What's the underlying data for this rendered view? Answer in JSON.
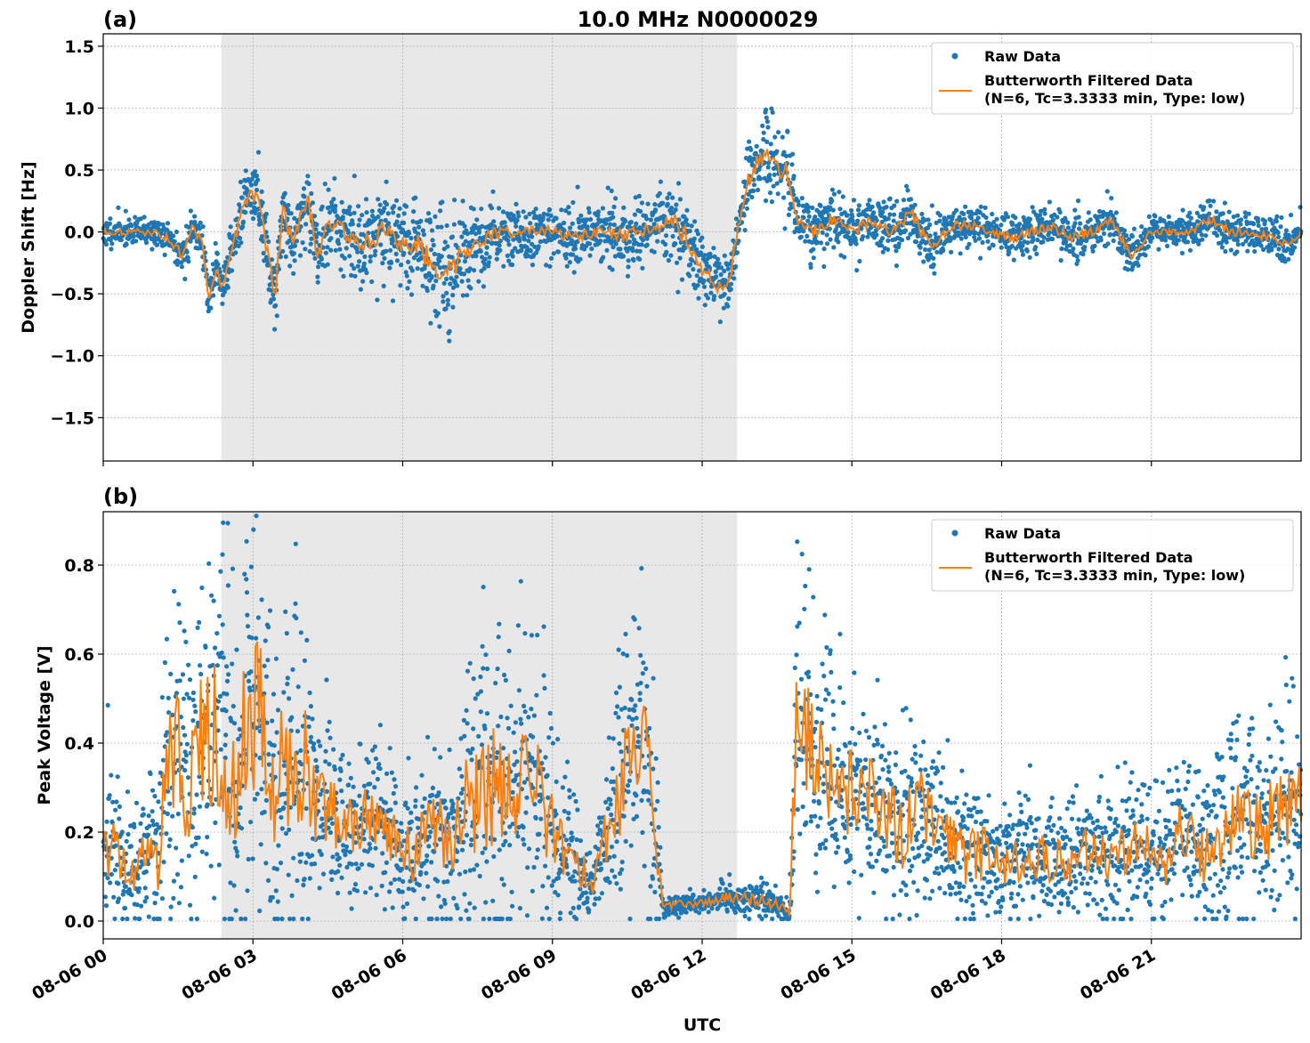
{
  "figure": {
    "title": "10.0 MHz N0000029",
    "xlabel": "UTC"
  },
  "colors": {
    "raw": "#1f77b4",
    "filtered": "#ff7f0e",
    "shade": "#e8e8e8",
    "grid": "#b0b0b0"
  },
  "chart_data": [
    {
      "type": "scatter",
      "panel_label": "(a)",
      "title": "10.0 MHz N0000029",
      "xlabel": "",
      "ylabel": "Doppler Shift [Hz]",
      "xlim": [
        "08-06 00:00",
        "08-07 00:00"
      ],
      "ylim": [
        -1.85,
        1.6
      ],
      "yticks": [
        -1.5,
        -1.0,
        -0.5,
        0.0,
        0.5,
        1.0,
        1.5
      ],
      "ytick_labels": [
        "−1.5",
        "−1.0",
        "−0.5",
        "0.0",
        "0.5",
        "1.0",
        "1.5"
      ],
      "shaded_interval": [
        "08-06 02:22",
        "08-06 12:42"
      ],
      "grid": true,
      "legend": {
        "position": "top-right",
        "entries": [
          {
            "label": "Raw Data",
            "marker": "point"
          },
          {
            "label": "Butterworth Filtered Data",
            "label2": "(N=6, Tc=3.3333 min, Type: low)",
            "marker": "line"
          }
        ]
      },
      "series": [
        {
          "name": "Raw Data",
          "x_hours": [
            0.0,
            0.5,
            1.0,
            1.3,
            1.6,
            1.8,
            2.0,
            2.1,
            2.25,
            2.4,
            2.55,
            2.7,
            2.9,
            3.1,
            3.3,
            3.45,
            3.6,
            3.8,
            4.1,
            4.3,
            4.5,
            4.8,
            5.2,
            5.6,
            6.0,
            6.3,
            6.6,
            6.9,
            7.2,
            7.6,
            8.0,
            8.5,
            9.0,
            9.5,
            10.0,
            10.5,
            11.0,
            11.4,
            11.7,
            12.0,
            12.3,
            12.55,
            12.7,
            12.9,
            13.1,
            13.3,
            13.5,
            13.7,
            13.9,
            14.2,
            14.6,
            15.0,
            15.4,
            15.8,
            16.2,
            16.6,
            17.0,
            17.4,
            17.8,
            18.2,
            18.6,
            19.0,
            19.4,
            19.8,
            20.2,
            20.6,
            21.0,
            21.4,
            21.8,
            22.2,
            22.6,
            23.0,
            23.4,
            23.8,
            24.0
          ],
          "y": [
            0.0,
            0.0,
            0.0,
            -0.05,
            -0.2,
            0.05,
            -0.1,
            -0.55,
            -0.3,
            -0.45,
            -0.15,
            0.05,
            0.3,
            0.28,
            -0.2,
            -0.5,
            0.2,
            -0.1,
            0.3,
            -0.2,
            0.1,
            0.0,
            -0.1,
            0.0,
            -0.1,
            -0.1,
            -0.25,
            -0.35,
            -0.15,
            -0.05,
            0.0,
            0.0,
            0.0,
            -0.05,
            0.0,
            -0.05,
            0.05,
            0.1,
            -0.05,
            -0.3,
            -0.45,
            -0.4,
            0.0,
            0.4,
            0.55,
            0.6,
            0.5,
            0.5,
            0.1,
            0.0,
            0.1,
            0.0,
            0.1,
            0.0,
            0.15,
            -0.15,
            0.05,
            0.05,
            0.0,
            -0.05,
            0.0,
            0.05,
            -0.05,
            0.0,
            0.1,
            -0.2,
            0.0,
            0.0,
            0.0,
            0.1,
            0.0,
            0.0,
            -0.05,
            -0.1,
            0.0
          ],
          "spread": [
            0.1,
            0.1,
            0.1,
            0.12,
            0.2,
            0.15,
            0.15,
            0.15,
            0.2,
            0.15,
            0.2,
            0.25,
            0.2,
            0.25,
            0.3,
            0.25,
            0.3,
            0.3,
            0.3,
            0.35,
            0.3,
            0.3,
            0.3,
            0.35,
            0.3,
            0.35,
            0.4,
            0.45,
            0.35,
            0.3,
            0.2,
            0.2,
            0.2,
            0.2,
            0.2,
            0.25,
            0.25,
            0.3,
            0.3,
            0.3,
            0.2,
            0.2,
            0.2,
            0.25,
            0.3,
            0.35,
            0.3,
            0.3,
            0.2,
            0.2,
            0.2,
            0.2,
            0.2,
            0.2,
            0.2,
            0.2,
            0.15,
            0.15,
            0.15,
            0.15,
            0.15,
            0.15,
            0.2,
            0.15,
            0.15,
            0.15,
            0.1,
            0.1,
            0.15,
            0.15,
            0.15,
            0.15,
            0.15,
            0.15,
            0.1
          ]
        },
        {
          "name": "Butterworth Filtered Data (N=6, Tc=3.3333 min, Type: low)",
          "x_hours": [
            0.0,
            0.5,
            1.0,
            1.3,
            1.6,
            1.8,
            2.0,
            2.1,
            2.25,
            2.4,
            2.55,
            2.7,
            2.9,
            3.1,
            3.3,
            3.45,
            3.6,
            3.8,
            4.1,
            4.3,
            4.5,
            4.8,
            5.2,
            5.6,
            6.0,
            6.3,
            6.6,
            6.9,
            7.2,
            7.6,
            8.0,
            8.5,
            9.0,
            9.5,
            10.0,
            10.5,
            11.0,
            11.4,
            11.7,
            12.0,
            12.3,
            12.55,
            12.7,
            12.9,
            13.1,
            13.3,
            13.5,
            13.7,
            13.9,
            14.2,
            14.6,
            15.0,
            15.4,
            15.8,
            16.2,
            16.6,
            17.0,
            17.4,
            17.8,
            18.2,
            18.6,
            19.0,
            19.4,
            19.8,
            20.2,
            20.6,
            21.0,
            21.4,
            21.8,
            22.2,
            22.6,
            23.0,
            23.4,
            23.8,
            24.0
          ],
          "y": [
            0.0,
            0.0,
            0.0,
            -0.05,
            -0.2,
            0.05,
            -0.1,
            -0.55,
            -0.3,
            -0.45,
            -0.15,
            0.05,
            0.3,
            0.28,
            -0.2,
            -0.5,
            0.2,
            -0.1,
            0.3,
            -0.2,
            0.1,
            0.0,
            -0.1,
            0.0,
            -0.1,
            -0.1,
            -0.25,
            -0.35,
            -0.15,
            -0.05,
            0.0,
            0.0,
            0.0,
            -0.05,
            0.0,
            -0.05,
            0.05,
            0.1,
            -0.05,
            -0.3,
            -0.45,
            -0.4,
            0.0,
            0.4,
            0.55,
            0.6,
            0.5,
            0.5,
            0.1,
            0.0,
            0.1,
            0.0,
            0.1,
            0.0,
            0.15,
            -0.15,
            0.05,
            0.05,
            0.0,
            -0.05,
            0.0,
            0.05,
            -0.05,
            0.0,
            0.1,
            -0.2,
            0.0,
            0.0,
            0.0,
            0.1,
            0.0,
            0.0,
            -0.05,
            -0.1,
            0.0
          ]
        }
      ]
    },
    {
      "type": "scatter",
      "panel_label": "(b)",
      "xlabel": "UTC",
      "ylabel": "Peak Voltage [V]",
      "xlim": [
        "08-06 00:00",
        "08-07 00:00"
      ],
      "ylim": [
        -0.04,
        0.92
      ],
      "yticks": [
        0.0,
        0.2,
        0.4,
        0.6,
        0.8
      ],
      "ytick_labels": [
        "0.0",
        "0.2",
        "0.4",
        "0.6",
        "0.8"
      ],
      "xtick_labels": [
        "08-06 00",
        "08-06 03",
        "08-06 06",
        "08-06 09",
        "08-06 12",
        "08-06 15",
        "08-06 18",
        "08-06 21"
      ],
      "xticks_hours": [
        0,
        3,
        6,
        9,
        12,
        15,
        18,
        21
      ],
      "shaded_interval": [
        "08-06 02:22",
        "08-06 12:42"
      ],
      "grid": true,
      "legend": {
        "position": "top-right",
        "entries": [
          {
            "label": "Raw Data",
            "marker": "point"
          },
          {
            "label": "Butterworth Filtered Data",
            "label2": "(N=6, Tc=3.3333 min, Type: low)",
            "marker": "line"
          }
        ]
      },
      "series": [
        {
          "name": "Raw Data",
          "x_hours": [
            0.0,
            0.3,
            0.6,
            0.9,
            1.1,
            1.3,
            1.5,
            1.7,
            1.9,
            2.1,
            2.3,
            2.5,
            2.7,
            2.9,
            3.1,
            3.3,
            3.5,
            3.7,
            3.9,
            4.1,
            4.3,
            4.6,
            5.0,
            5.4,
            5.8,
            6.2,
            6.6,
            7.0,
            7.4,
            7.8,
            8.2,
            8.6,
            9.0,
            9.4,
            9.8,
            10.2,
            10.5,
            10.8,
            11.0,
            11.2,
            11.25,
            11.6,
            12.0,
            12.4,
            12.8,
            13.2,
            13.6,
            13.75,
            13.9,
            14.1,
            14.4,
            14.8,
            15.2,
            15.6,
            16.0,
            16.4,
            16.8,
            17.2,
            17.6,
            18.0,
            18.4,
            18.8,
            19.2,
            19.6,
            20.0,
            20.4,
            20.8,
            21.2,
            21.6,
            22.0,
            22.4,
            22.8,
            23.2,
            23.6,
            24.0
          ],
          "y": [
            0.2,
            0.15,
            0.1,
            0.18,
            0.15,
            0.35,
            0.4,
            0.3,
            0.45,
            0.4,
            0.42,
            0.38,
            0.3,
            0.5,
            0.45,
            0.4,
            0.3,
            0.35,
            0.4,
            0.3,
            0.28,
            0.25,
            0.2,
            0.25,
            0.18,
            0.15,
            0.2,
            0.18,
            0.28,
            0.3,
            0.28,
            0.32,
            0.2,
            0.15,
            0.07,
            0.25,
            0.35,
            0.4,
            0.3,
            0.05,
            0.03,
            0.04,
            0.04,
            0.05,
            0.05,
            0.05,
            0.03,
            0.02,
            0.45,
            0.4,
            0.35,
            0.3,
            0.3,
            0.25,
            0.2,
            0.25,
            0.2,
            0.15,
            0.15,
            0.12,
            0.15,
            0.15,
            0.13,
            0.15,
            0.15,
            0.15,
            0.18,
            0.12,
            0.2,
            0.15,
            0.2,
            0.25,
            0.2,
            0.25,
            0.3
          ],
          "spread": [
            0.2,
            0.15,
            0.1,
            0.15,
            0.2,
            0.35,
            0.35,
            0.3,
            0.4,
            0.35,
            0.4,
            0.4,
            0.35,
            0.4,
            0.4,
            0.4,
            0.35,
            0.35,
            0.4,
            0.35,
            0.2,
            0.2,
            0.15,
            0.15,
            0.15,
            0.15,
            0.2,
            0.2,
            0.3,
            0.3,
            0.3,
            0.3,
            0.2,
            0.15,
            0.07,
            0.2,
            0.3,
            0.35,
            0.3,
            0.03,
            0.02,
            0.02,
            0.02,
            0.03,
            0.03,
            0.04,
            0.03,
            0.02,
            0.35,
            0.35,
            0.3,
            0.25,
            0.2,
            0.2,
            0.2,
            0.2,
            0.15,
            0.15,
            0.15,
            0.12,
            0.13,
            0.13,
            0.12,
            0.13,
            0.13,
            0.13,
            0.15,
            0.12,
            0.15,
            0.15,
            0.2,
            0.2,
            0.2,
            0.25,
            0.25
          ]
        },
        {
          "name": "Butterworth Filtered Data (N=6, Tc=3.3333 min, Type: low)",
          "x_hours": [
            0.0,
            0.3,
            0.6,
            0.9,
            1.1,
            1.3,
            1.5,
            1.7,
            1.9,
            2.1,
            2.3,
            2.5,
            2.7,
            2.9,
            3.1,
            3.3,
            3.5,
            3.7,
            3.9,
            4.1,
            4.3,
            4.6,
            5.0,
            5.4,
            5.8,
            6.2,
            6.6,
            7.0,
            7.4,
            7.8,
            8.2,
            8.6,
            9.0,
            9.4,
            9.8,
            10.2,
            10.5,
            10.8,
            11.0,
            11.2,
            11.25,
            11.6,
            12.0,
            12.4,
            12.8,
            13.2,
            13.6,
            13.75,
            13.9,
            14.1,
            14.4,
            14.8,
            15.2,
            15.6,
            16.0,
            16.4,
            16.8,
            17.2,
            17.6,
            18.0,
            18.4,
            18.8,
            19.2,
            19.6,
            20.0,
            20.4,
            20.8,
            21.2,
            21.6,
            22.0,
            22.4,
            22.8,
            23.2,
            23.6,
            24.0
          ],
          "y": [
            0.2,
            0.15,
            0.1,
            0.18,
            0.15,
            0.35,
            0.4,
            0.3,
            0.45,
            0.4,
            0.42,
            0.38,
            0.3,
            0.5,
            0.45,
            0.4,
            0.3,
            0.35,
            0.4,
            0.3,
            0.28,
            0.25,
            0.2,
            0.25,
            0.18,
            0.15,
            0.2,
            0.18,
            0.28,
            0.3,
            0.28,
            0.32,
            0.2,
            0.15,
            0.07,
            0.25,
            0.35,
            0.4,
            0.3,
            0.05,
            0.03,
            0.04,
            0.04,
            0.05,
            0.05,
            0.05,
            0.03,
            0.02,
            0.45,
            0.4,
            0.35,
            0.3,
            0.3,
            0.25,
            0.2,
            0.25,
            0.2,
            0.15,
            0.15,
            0.12,
            0.15,
            0.15,
            0.13,
            0.15,
            0.15,
            0.15,
            0.18,
            0.12,
            0.2,
            0.15,
            0.2,
            0.25,
            0.2,
            0.25,
            0.3
          ]
        }
      ]
    }
  ]
}
